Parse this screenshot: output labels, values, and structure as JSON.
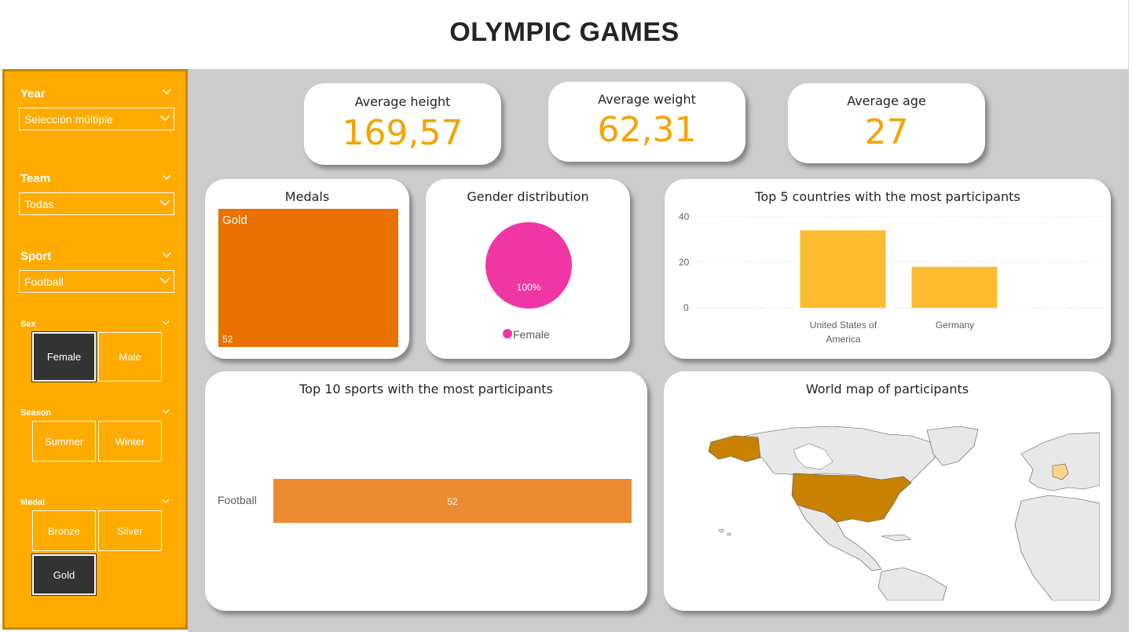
{
  "header": {
    "title": "OLYMPIC GAMES"
  },
  "filters": {
    "year": {
      "title": "Year",
      "value": "Selección múltiple"
    },
    "team": {
      "title": "Team",
      "value": "Todas"
    },
    "sport": {
      "title": "Sport",
      "value": "Football"
    },
    "sex": {
      "title": "Sex",
      "options": [
        "Female",
        "Male"
      ],
      "selected": "Female"
    },
    "season": {
      "title": "Season",
      "options": [
        "Summer",
        "Winter"
      ]
    },
    "medal": {
      "title": "Medal",
      "options": [
        "Bronze",
        "Silver",
        "Gold"
      ],
      "selected": "Gold"
    }
  },
  "kpis": {
    "height": {
      "label": "Average height",
      "value": "169,57"
    },
    "weight": {
      "label": "Average weight",
      "value": "62,31"
    },
    "age": {
      "label": "Average age",
      "value": "27"
    }
  },
  "medals": {
    "title": "Medals",
    "category": "Gold",
    "value": "52",
    "color": "#e87100"
  },
  "gender": {
    "title": "Gender distribution",
    "slice_label": "100%",
    "legend": "Female",
    "color": "#f035a4"
  },
  "countries": {
    "title": "Top 5 countries with the most participants"
  },
  "sports": {
    "title": "Top 10 sports with the most participants"
  },
  "map": {
    "title": "World map of participants",
    "highlight_color": "#c98100",
    "light_color": "#f8d58a",
    "land_color": "#e8e8e8"
  },
  "chart_data": [
    {
      "type": "bar",
      "title": "Top 5 countries with the most participants",
      "categories": [
        "United States of America",
        "Germany"
      ],
      "values": [
        34,
        18
      ],
      "ylim": [
        0,
        40
      ],
      "yticks": [
        0,
        20,
        40
      ],
      "grid": true,
      "color": "#fdbb30"
    },
    {
      "type": "bar",
      "orientation": "horizontal",
      "title": "Top 10 sports with the most participants",
      "categories": [
        "Football"
      ],
      "values": [
        52
      ],
      "color": "#ed8b33"
    },
    {
      "type": "pie",
      "title": "Gender distribution",
      "categories": [
        "Female"
      ],
      "values": [
        100
      ],
      "color": "#f035a4"
    }
  ]
}
